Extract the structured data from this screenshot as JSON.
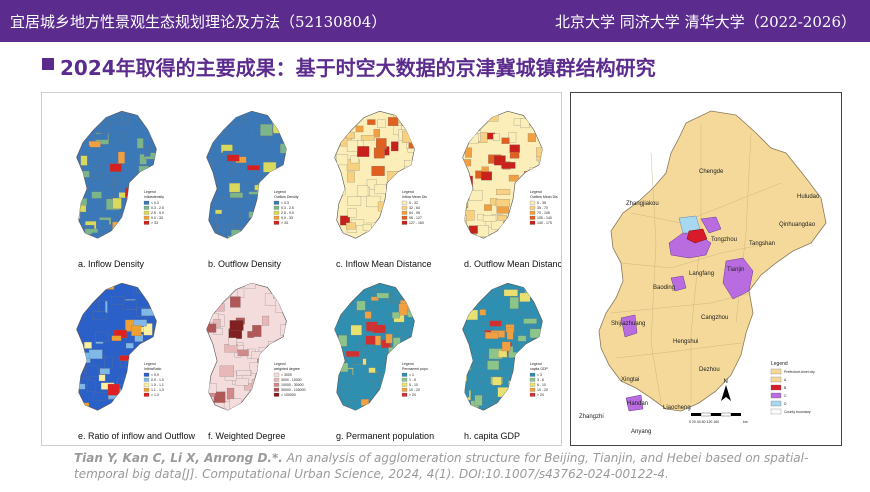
{
  "header": {
    "left_title": "宜居城乡地方性景观生态规划理论及方法（52130804）",
    "right_title": "北京大学  同济大学  清华大学（2022-2026）"
  },
  "slide": {
    "subtitle": "2024年取得的主要成果：基于时空大数据的京津冀城镇群结构研究"
  },
  "maps": [
    {
      "label": "a. Inflow Density",
      "legend_title": "Legend",
      "legend_sub": "inflowdensity",
      "legend_items": [
        "< 0.3",
        "0.3 - 2.5",
        "2.5 - 9.0",
        "9.0 - 33",
        "> 33"
      ],
      "colors": [
        "#3a78b8",
        "#7cb58a",
        "#d9d95e",
        "#f0a040",
        "#d32020"
      ]
    },
    {
      "label": "b. Outflow Density",
      "legend_title": "Legend",
      "legend_sub": "Outflow Density",
      "legend_items": [
        "< 0.3",
        "0.3 - 2.5",
        "2.5 - 9.0",
        "9.0 - 33",
        "> 33"
      ],
      "colors": [
        "#3a78b8",
        "#7cb58a",
        "#d9d95e",
        "#f0a040",
        "#d32020"
      ]
    },
    {
      "label": "c. Inflow Mean Distance",
      "legend_title": "Legend",
      "legend_sub": "Inflow Mean Dis",
      "legend_items": [
        "0 - 32",
        "32 - 64",
        "64 - 95",
        "95 - 127",
        "127 - 160"
      ],
      "colors": [
        "#fbeeb8",
        "#f7d080",
        "#f0a040",
        "#e06020",
        "#c8201a"
      ]
    },
    {
      "label": "d. Outflow Mean Distance",
      "legend_title": "Legend",
      "legend_sub": "Outflow Mean Dis",
      "legend_items": [
        "0 - 35",
        "35 - 70",
        "70 - 105",
        "105 - 140",
        "140 - 175"
      ],
      "colors": [
        "#fbeeb8",
        "#f7d080",
        "#f0a040",
        "#e06020",
        "#c8201a"
      ]
    },
    {
      "label": "e. Ratio of inflow and Outflow",
      "legend_title": "Legend",
      "legend_sub": "InflowRatio",
      "legend_items": [
        "< 0.9",
        "0.9 - 1.0",
        "1.0 - 1.1",
        "1.1 - 1.3",
        "> 1.3"
      ],
      "colors": [
        "#2a60c8",
        "#80b8e8",
        "#f8f0a0",
        "#f0a030",
        "#e02020"
      ]
    },
    {
      "label": "f. Weighted Degree",
      "legend_title": "Legend",
      "legend_sub": "weighted degree",
      "legend_items": [
        "< 3000",
        "3000 - 10000",
        "10000 - 30000",
        "30000 - 100000",
        "> 100000"
      ],
      "colors": [
        "#f4dcdc",
        "#e8b8b8",
        "#d08a8a",
        "#b05858",
        "#802020"
      ]
    },
    {
      "label": "g. Permanent population",
      "legend_title": "Legend",
      "legend_sub": "Permanent popu",
      "legend_items": [
        "< 1",
        "1 - 5",
        "5 - 10",
        "10 - 20",
        "> 20"
      ],
      "colors": [
        "#2f8fb0",
        "#8cc58a",
        "#e8e070",
        "#f0a040",
        "#d03030"
      ]
    },
    {
      "label": "h. capita GDP",
      "legend_title": "Legend",
      "legend_sub": "capita GDP",
      "legend_items": [
        "< 3",
        "3 - 6",
        "6 - 10",
        "10 - 20",
        "> 20"
      ],
      "colors": [
        "#2f8fb0",
        "#8cc58a",
        "#e8e070",
        "#f0a040",
        "#d03030"
      ]
    }
  ],
  "right_map": {
    "cities": [
      {
        "name": "Chengde"
      },
      {
        "name": "Zhangjiakou"
      },
      {
        "name": "Huludao"
      },
      {
        "name": "Qinhuangdao"
      },
      {
        "name": "Tongzhou"
      },
      {
        "name": "Tangshan"
      },
      {
        "name": "Langfang"
      },
      {
        "name": "Tianjin"
      },
      {
        "name": "Baoding"
      },
      {
        "name": "Cangzhou"
      },
      {
        "name": "Shijiazhuang"
      },
      {
        "name": "Hengshui"
      },
      {
        "name": "Dezhou"
      },
      {
        "name": "Xingtai"
      },
      {
        "name": "Handan"
      },
      {
        "name": "Liaocheng"
      },
      {
        "name": "Zhangzhi"
      },
      {
        "name": "Anyang"
      }
    ],
    "legend_title": "Legend",
    "legend_items": [
      {
        "label": "Prefecture-level city",
        "color": "#f5d99a"
      },
      {
        "label": "A",
        "color": "#f5d99a"
      },
      {
        "label": "B",
        "color": "#d81b2a"
      },
      {
        "label": "C",
        "color": "#b96be0"
      },
      {
        "label": "D",
        "color": "#a8d8f0"
      },
      {
        "label": "County boundary",
        "color": "#ffffff"
      }
    ],
    "scale_text": "0  20  40    80   120   160",
    "scale_unit": "km",
    "north": "N"
  },
  "citation": {
    "authors": "Tian Y, Kan C, Li X, Anrong D.*.",
    "text": " An analysis of agglomeration structure for Beijing, Tianjin, and Hebei based on spatial-temporal big data[J]. Computational Urban Science, 2024, 4(1). DOI:10.1007/s43762-024-00122-4."
  }
}
